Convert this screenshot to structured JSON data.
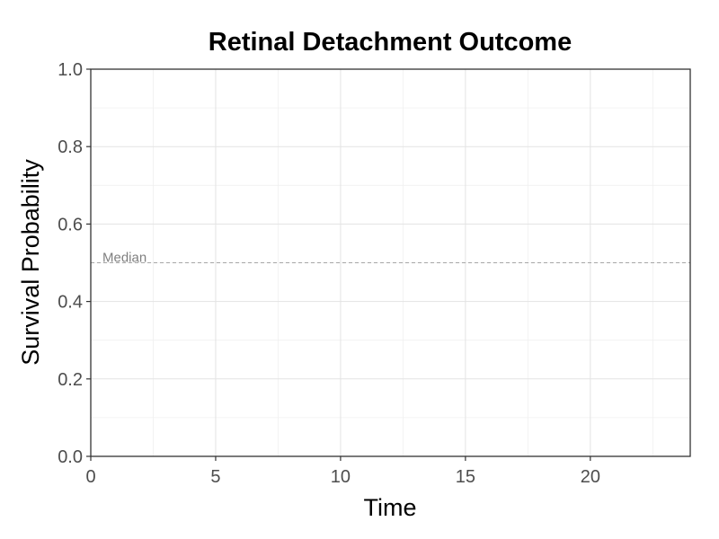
{
  "chart_data": {
    "type": "line",
    "title": "Retinal Detachment Outcome",
    "xlabel": "Time",
    "ylabel": "Survival Probability",
    "xlim": [
      0,
      24
    ],
    "ylim": [
      0,
      1
    ],
    "x_ticks": [
      0,
      5,
      10,
      15,
      20
    ],
    "y_ticks": [
      0.0,
      0.2,
      0.4,
      0.6,
      0.8,
      1.0
    ],
    "y_tick_labels": [
      "0.0",
      "0.2",
      "0.4",
      "0.6",
      "0.8",
      "1.0"
    ],
    "grid": true,
    "series": [],
    "reference_lines": [
      {
        "orientation": "horizontal",
        "y": 0.5,
        "style": "dashed",
        "color": "#a6a6a6",
        "label": "Median"
      }
    ]
  }
}
